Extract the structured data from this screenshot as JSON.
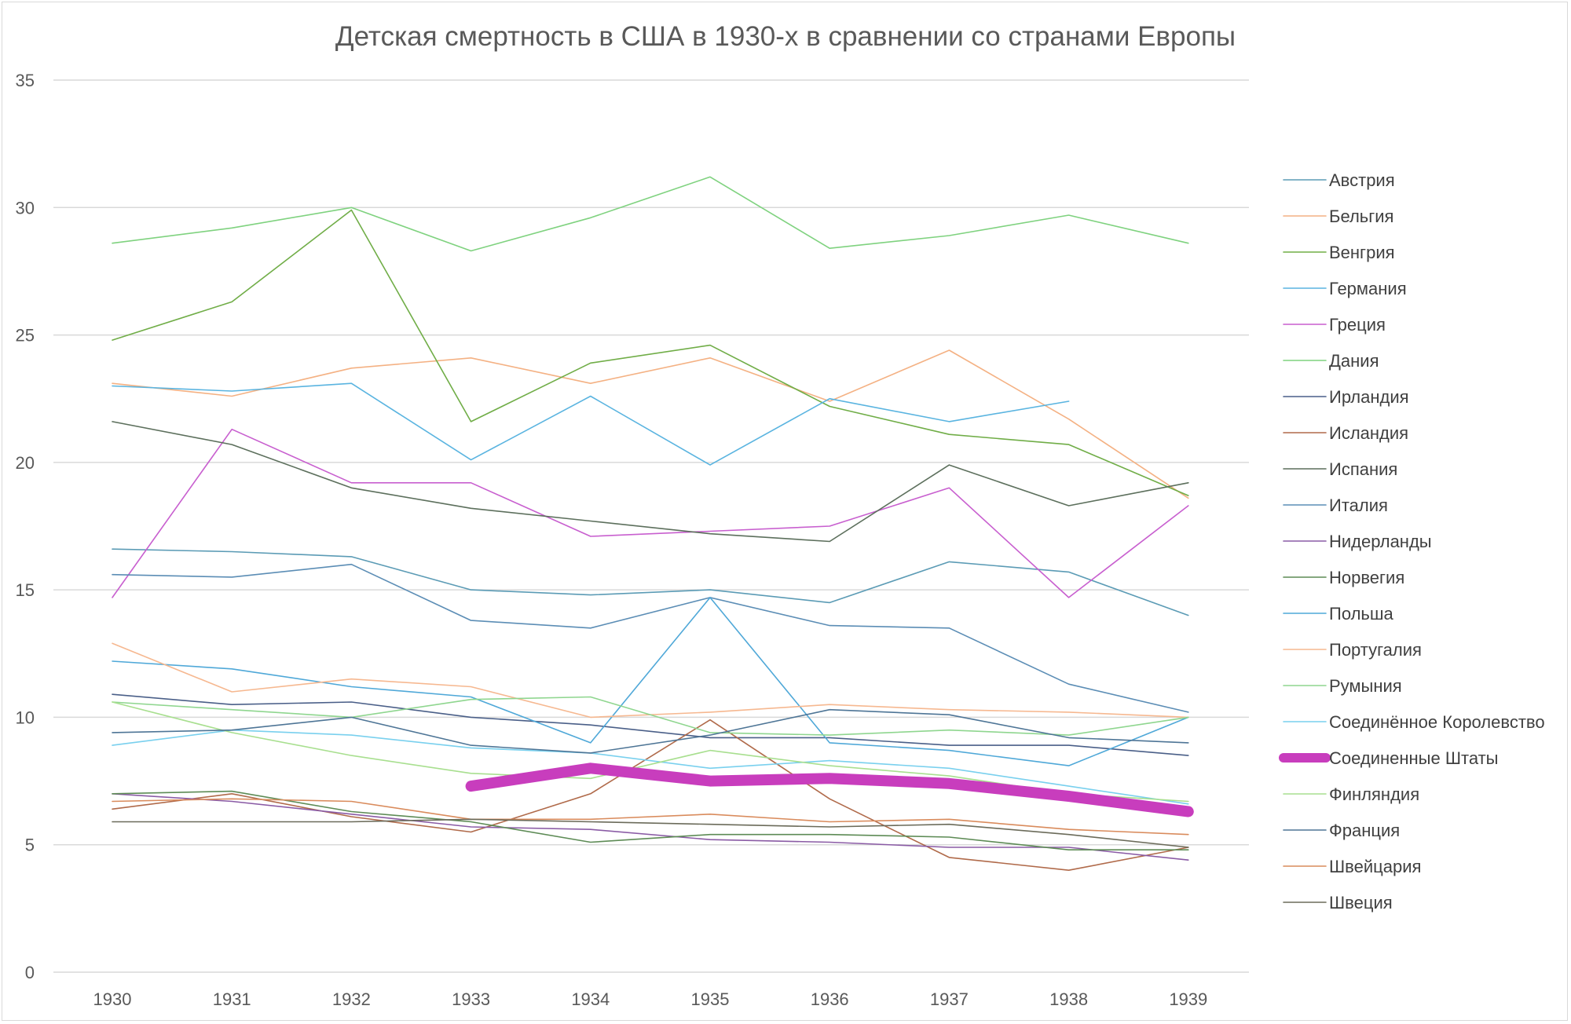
{
  "chart_data": {
    "type": "line",
    "title": "Детская смертность в США в 1930-х в сравнении со странами Европы",
    "xlabel": "",
    "ylabel": "",
    "ylim": [
      0,
      35
    ],
    "yticks": [
      0,
      5,
      10,
      15,
      20,
      25,
      30,
      35
    ],
    "categories": [
      "1930",
      "1931",
      "1932",
      "1933",
      "1934",
      "1935",
      "1936",
      "1937",
      "1938",
      "1939"
    ],
    "grid": "horizontal",
    "legend_position": "right",
    "highlight_series": "Соединенные Штаты",
    "series": [
      {
        "name": "Австрия",
        "color": "#5b9bb5",
        "values": [
          16.6,
          16.5,
          16.3,
          15.0,
          14.8,
          15.0,
          14.5,
          16.1,
          15.7,
          14.0
        ]
      },
      {
        "name": "Бельгия",
        "color": "#f4b183",
        "values": [
          23.1,
          22.6,
          23.7,
          24.1,
          23.1,
          24.1,
          22.4,
          24.4,
          21.7,
          18.6
        ]
      },
      {
        "name": "Венгрия",
        "color": "#70ad47",
        "values": [
          24.8,
          26.3,
          29.9,
          21.6,
          23.9,
          24.6,
          22.2,
          21.1,
          20.7,
          18.7
        ]
      },
      {
        "name": "Германия",
        "color": "#5ab4e0",
        "values": [
          23.0,
          22.8,
          23.1,
          20.1,
          22.6,
          19.9,
          22.5,
          21.6,
          22.4,
          null
        ]
      },
      {
        "name": "Греция",
        "color": "#c85fcf",
        "values": [
          14.7,
          21.3,
          19.2,
          19.2,
          17.1,
          17.3,
          17.5,
          19.0,
          14.7,
          18.3
        ]
      },
      {
        "name": "Дания",
        "color": "#7fd27f",
        "values": [
          28.6,
          29.2,
          30.0,
          28.3,
          29.6,
          31.2,
          28.4,
          28.9,
          29.7,
          28.6
        ]
      },
      {
        "name": "Ирландия",
        "color": "#4a5f88",
        "values": [
          10.9,
          10.5,
          10.6,
          10.0,
          9.7,
          9.2,
          9.2,
          8.9,
          8.9,
          8.5
        ]
      },
      {
        "name": "Исландия",
        "color": "#b06a4a",
        "values": [
          6.4,
          7.0,
          6.1,
          5.5,
          7.0,
          9.9,
          6.8,
          4.5,
          4.0,
          4.9
        ]
      },
      {
        "name": "Испания",
        "color": "#5c6f5c",
        "values": [
          21.6,
          20.7,
          19.0,
          18.2,
          17.7,
          17.2,
          16.9,
          19.9,
          18.3,
          19.2
        ]
      },
      {
        "name": "Италия",
        "color": "#5b8db5",
        "values": [
          15.6,
          15.5,
          16.0,
          13.8,
          13.5,
          14.7,
          13.6,
          13.5,
          11.3,
          10.2
        ]
      },
      {
        "name": "Нидерланды",
        "color": "#8a5ba5",
        "values": [
          7.0,
          6.7,
          6.2,
          5.7,
          5.6,
          5.2,
          5.1,
          4.9,
          4.9,
          4.4
        ]
      },
      {
        "name": "Норвегия",
        "color": "#5d8b55",
        "values": [
          7.0,
          7.1,
          6.3,
          5.9,
          5.1,
          5.4,
          5.4,
          5.3,
          4.8,
          4.8
        ]
      },
      {
        "name": "Польша",
        "color": "#4fa8d8",
        "values": [
          12.2,
          11.9,
          11.2,
          10.8,
          9.0,
          14.7,
          9.0,
          8.7,
          8.1,
          10.0
        ]
      },
      {
        "name": "Португалия",
        "color": "#f6b890",
        "values": [
          12.9,
          11.0,
          11.5,
          11.2,
          10.0,
          10.2,
          10.5,
          10.3,
          10.2,
          10.0
        ]
      },
      {
        "name": "Румыния",
        "color": "#8fd68f",
        "values": [
          10.6,
          10.3,
          10.0,
          10.7,
          10.8,
          9.4,
          9.3,
          9.5,
          9.3,
          10.0
        ]
      },
      {
        "name": "Соединённое Королевство",
        "color": "#79d0ee",
        "values": [
          8.9,
          9.5,
          9.3,
          8.8,
          8.6,
          8.0,
          8.3,
          8.0,
          7.3,
          6.6
        ]
      },
      {
        "name": "Соединенные Штаты",
        "color": "#c83dbd",
        "values": [
          null,
          null,
          null,
          7.3,
          8.0,
          7.5,
          7.6,
          7.4,
          6.9,
          6.3
        ]
      },
      {
        "name": "Финляндия",
        "color": "#a8df8f",
        "values": [
          10.6,
          9.4,
          8.5,
          7.8,
          7.6,
          8.7,
          8.1,
          7.7,
          7.0,
          6.7
        ]
      },
      {
        "name": "Франция",
        "color": "#4e7596",
        "values": [
          9.4,
          9.5,
          10.0,
          8.9,
          8.6,
          9.3,
          10.3,
          10.1,
          9.2,
          9.0
        ]
      },
      {
        "name": "Швейцария",
        "color": "#d98b5c",
        "values": [
          6.7,
          6.8,
          6.7,
          6.0,
          6.0,
          6.2,
          5.9,
          6.0,
          5.6,
          5.4
        ]
      },
      {
        "name": "Швеция",
        "color": "#6b6b5a",
        "values": [
          5.9,
          5.9,
          5.9,
          6.0,
          5.9,
          5.8,
          5.7,
          5.8,
          5.4,
          4.9
        ]
      }
    ]
  }
}
